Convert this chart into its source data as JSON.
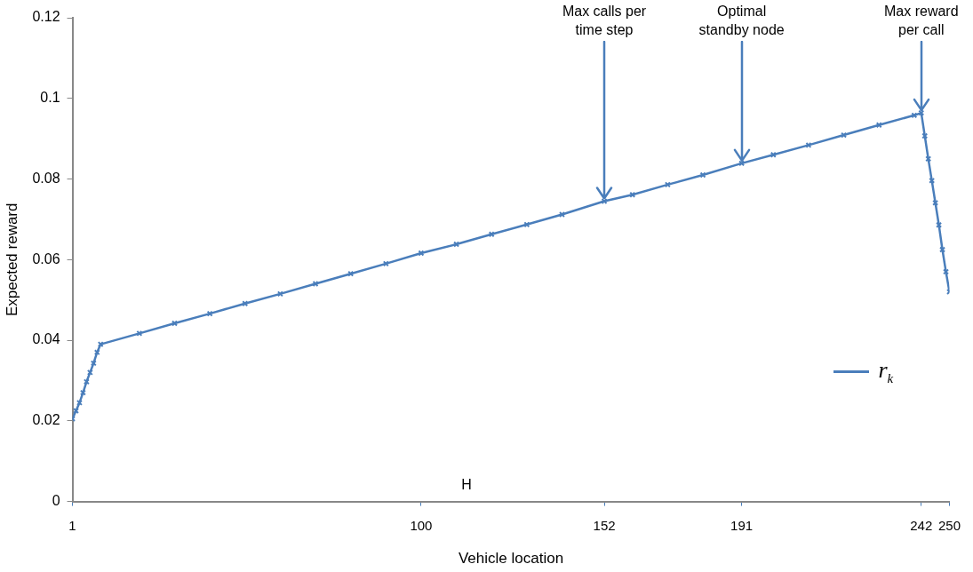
{
  "chart_data": {
    "type": "line",
    "xlabel": "Vehicle location",
    "ylabel": "Expected reward",
    "x": [
      1,
      2,
      3,
      4,
      5,
      6,
      7,
      8,
      9,
      20,
      30,
      40,
      50,
      60,
      70,
      80,
      90,
      100,
      110,
      120,
      130,
      140,
      152,
      160,
      170,
      180,
      191,
      200,
      210,
      220,
      230,
      240,
      242,
      243,
      244,
      245,
      246,
      247,
      248,
      249,
      250
    ],
    "series": [
      {
        "name": "r$_{k}$",
        "color": "#4a7ebb",
        "values": [
          0.0205,
          0.0225,
          0.0245,
          0.027,
          0.0297,
          0.032,
          0.0343,
          0.037,
          0.039,
          0.0417,
          0.0442,
          0.0466,
          0.0491,
          0.0515,
          0.054,
          0.0565,
          0.059,
          0.0616,
          0.0638,
          0.0663,
          0.0687,
          0.0712,
          0.0745,
          0.0761,
          0.0786,
          0.081,
          0.0839,
          0.086,
          0.0884,
          0.0909,
          0.0934,
          0.0958,
          0.0964,
          0.0907,
          0.085,
          0.0796,
          0.0741,
          0.0686,
          0.0625,
          0.057,
          0.052
        ]
      }
    ],
    "xlim": [
      1,
      250
    ],
    "xticks": [
      1,
      100,
      152,
      191,
      242,
      250
    ],
    "ylim": [
      0,
      0.12
    ],
    "yticks": [
      0,
      0.02,
      0.04,
      0.06,
      0.08,
      0.1,
      0.12
    ],
    "grid": false,
    "legend": "right",
    "marker": "cross",
    "line_style": "solid",
    "annotations": [
      {
        "text": "Max calls per\ntime step",
        "x": 152,
        "y": 0.0745
      },
      {
        "text": "Optimal\nstandby node",
        "x": 191,
        "y": 0.0839
      },
      {
        "text": "Max reward\nper call",
        "x": 242,
        "y": 0.0964
      },
      "H"
    ]
  }
}
